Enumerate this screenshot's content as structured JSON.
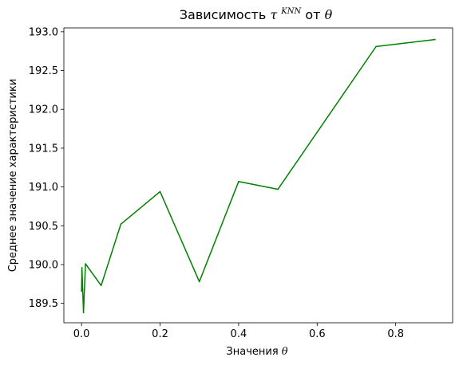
{
  "chart_data": {
    "type": "line",
    "title": "Зависимость τ^KNN от θ",
    "title_parts": {
      "before": "Зависимость ",
      "tau": "τ",
      "superscript": "KNN",
      "middle": " от ",
      "theta": "θ"
    },
    "xlabel": "Значения θ",
    "xlabel_parts": {
      "text": "Значения ",
      "theta": "θ"
    },
    "ylabel": "Среднее значение характеристики",
    "xlim": [
      -0.045,
      0.945
    ],
    "ylim": [
      189.25,
      193.05
    ],
    "xticks": [
      0.0,
      0.2,
      0.4,
      0.6,
      0.8
    ],
    "xtick_labels": [
      "0.0",
      "0.2",
      "0.4",
      "0.6",
      "0.8"
    ],
    "yticks": [
      189.5,
      190.0,
      190.5,
      191.0,
      191.5,
      192.0,
      192.5,
      193.0
    ],
    "ytick_labels": [
      "189.5",
      "190.0",
      "190.5",
      "191.0",
      "191.5",
      "192.0",
      "192.5",
      "193.0"
    ],
    "grid": false,
    "legend": false,
    "series": [
      {
        "color": "#008000",
        "x": [
          0.0,
          0.001,
          0.005,
          0.01,
          0.05,
          0.1,
          0.2,
          0.3,
          0.4,
          0.5,
          0.75,
          0.9
        ],
        "y": [
          189.66,
          189.96,
          189.38,
          190.01,
          189.73,
          190.52,
          190.94,
          189.78,
          191.07,
          190.97,
          192.81,
          192.9
        ]
      }
    ]
  }
}
